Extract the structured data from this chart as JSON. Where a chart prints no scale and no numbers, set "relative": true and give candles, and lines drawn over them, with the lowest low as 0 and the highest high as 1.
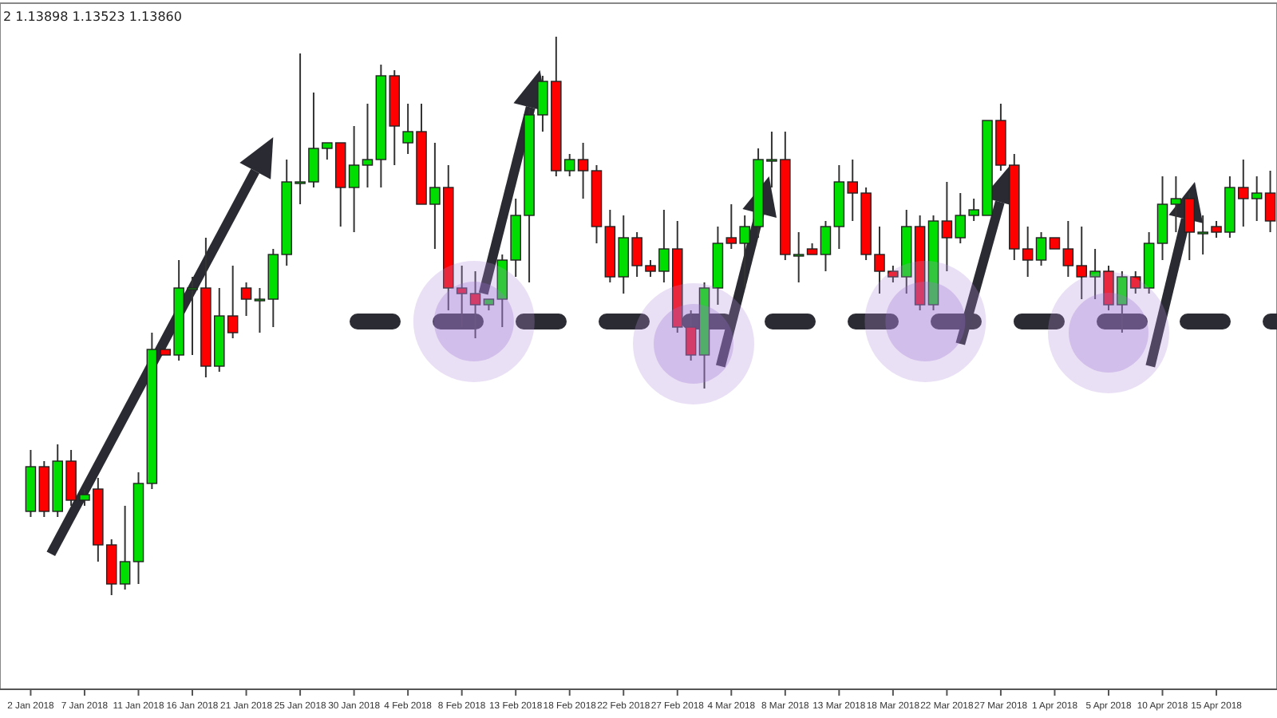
{
  "chart_data": {
    "type": "candlestick",
    "relative": true,
    "annotations": [
      "2 1.13898 1.13523 1.13860"
    ],
    "categories": [
      "2 Jan 2018",
      null,
      null,
      null,
      "7 Jan 2018",
      null,
      null,
      null,
      "11 Jan 2018",
      null,
      null,
      null,
      "16 Jan 2018",
      null,
      null,
      null,
      "21 Jan 2018",
      null,
      null,
      null,
      "25 Jan 2018",
      null,
      null,
      null,
      "30 Jan 2018",
      null,
      null,
      null,
      "4 Feb 2018",
      null,
      null,
      null,
      "8 Feb 2018",
      null,
      null,
      null,
      "13 Feb 2018",
      null,
      null,
      null,
      "18 Feb 2018",
      null,
      null,
      null,
      "22 Feb 2018",
      null,
      null,
      null,
      "27 Feb 2018",
      null,
      null,
      null,
      "4 Mar 2018",
      null,
      null,
      null,
      "8 Mar 2018",
      null,
      null,
      null,
      "13 Mar 2018",
      null,
      null,
      null,
      "18 Mar 2018",
      null,
      null,
      null,
      "22 Mar 2018",
      null,
      null,
      null,
      "27 Mar 2018",
      null,
      null,
      null,
      "1 Apr 2018",
      null,
      null,
      null,
      "5 Apr 2018",
      null,
      null,
      null,
      "10 Apr 2018",
      null,
      null,
      null,
      "15 Apr 2018",
      null,
      null,
      null,
      null
    ],
    "ohlc": [
      [
        0.15,
        0.26,
        0.14,
        0.23
      ],
      [
        0.23,
        0.24,
        0.14,
        0.15
      ],
      [
        0.15,
        0.27,
        0.14,
        0.24
      ],
      [
        0.24,
        0.26,
        0.16,
        0.17
      ],
      [
        0.17,
        0.19,
        0.16,
        0.18
      ],
      [
        0.19,
        0.21,
        0.06,
        0.09
      ],
      [
        0.09,
        0.1,
        0,
        0.02
      ],
      [
        0.02,
        0.16,
        0.01,
        0.06
      ],
      [
        0.06,
        0.22,
        0.02,
        0.2
      ],
      [
        0.2,
        0.47,
        0.19,
        0.44
      ],
      [
        0.44,
        0.44,
        0.43,
        0.43
      ],
      [
        0.43,
        0.6,
        0.42,
        0.55
      ],
      [
        0.55,
        0.57,
        0.43,
        0.55
      ],
      [
        0.55,
        0.64,
        0.39,
        0.41
      ],
      [
        0.41,
        0.55,
        0.4,
        0.5
      ],
      [
        0.5,
        0.59,
        0.46,
        0.47
      ],
      [
        0.55,
        0.56,
        0.5,
        0.53
      ],
      [
        0.53,
        0.55,
        0.47,
        0.53
      ],
      [
        0.53,
        0.62,
        0.48,
        0.61
      ],
      [
        0.61,
        0.78,
        0.59,
        0.74
      ],
      [
        0.74,
        0.97,
        0.7,
        0.74
      ],
      [
        0.74,
        0.9,
        0.73,
        0.8
      ],
      [
        0.8,
        0.81,
        0.78,
        0.81
      ],
      [
        0.81,
        0.81,
        0.66,
        0.73
      ],
      [
        0.73,
        0.84,
        0.65,
        0.77
      ],
      [
        0.77,
        0.88,
        0.73,
        0.78
      ],
      [
        0.78,
        0.95,
        0.73,
        0.93
      ],
      [
        0.93,
        0.94,
        0.77,
        0.84
      ],
      [
        0.81,
        0.88,
        0.79,
        0.83
      ],
      [
        0.83,
        0.88,
        0.7,
        0.7
      ],
      [
        0.7,
        0.81,
        0.62,
        0.73
      ],
      [
        0.73,
        0.77,
        0.51,
        0.55
      ],
      [
        0.55,
        0.59,
        0.48,
        0.54
      ],
      [
        0.54,
        0.58,
        0.46,
        0.52
      ],
      [
        0.52,
        0.53,
        0.51,
        0.53
      ],
      [
        0.53,
        0.61,
        0.48,
        0.6
      ],
      [
        0.6,
        0.71,
        0.57,
        0.68
      ],
      [
        0.68,
        0.87,
        0.56,
        0.86
      ],
      [
        0.86,
        0.93,
        0.83,
        0.92
      ],
      [
        0.92,
        1,
        0.75,
        0.76
      ],
      [
        0.76,
        0.79,
        0.75,
        0.78
      ],
      [
        0.78,
        0.81,
        0.71,
        0.76
      ],
      [
        0.76,
        0.77,
        0.63,
        0.66
      ],
      [
        0.66,
        0.69,
        0.56,
        0.57
      ],
      [
        0.57,
        0.68,
        0.54,
        0.64
      ],
      [
        0.64,
        0.65,
        0.57,
        0.59
      ],
      [
        0.59,
        0.6,
        0.57,
        0.58
      ],
      [
        0.58,
        0.69,
        0.56,
        0.62
      ],
      [
        0.62,
        0.67,
        0.47,
        0.48
      ],
      [
        0.48,
        0.51,
        0.42,
        0.43
      ],
      [
        0.43,
        0.56,
        0.37,
        0.55
      ],
      [
        0.55,
        0.66,
        0.52,
        0.63
      ],
      [
        0.64,
        0.7,
        0.62,
        0.63
      ],
      [
        0.63,
        0.68,
        0.55,
        0.66
      ],
      [
        0.66,
        0.8,
        0.64,
        0.78
      ],
      [
        0.78,
        0.83,
        0.73,
        0.78
      ],
      [
        0.78,
        0.83,
        0.6,
        0.61
      ],
      [
        0.61,
        0.65,
        0.56,
        0.61
      ],
      [
        0.62,
        0.63,
        0.61,
        0.61
      ],
      [
        0.61,
        0.67,
        0.58,
        0.66
      ],
      [
        0.66,
        0.77,
        0.62,
        0.74
      ],
      [
        0.74,
        0.78,
        0.67,
        0.72
      ],
      [
        0.72,
        0.73,
        0.6,
        0.61
      ],
      [
        0.61,
        0.66,
        0.54,
        0.58
      ],
      [
        0.58,
        0.59,
        0.56,
        0.57
      ],
      [
        0.57,
        0.69,
        0.54,
        0.66
      ],
      [
        0.66,
        0.68,
        0.51,
        0.52
      ],
      [
        0.52,
        0.68,
        0.51,
        0.67
      ],
      [
        0.67,
        0.74,
        0.58,
        0.64
      ],
      [
        0.64,
        0.72,
        0.63,
        0.68
      ],
      [
        0.68,
        0.71,
        0.67,
        0.69
      ],
      [
        0.68,
        0.85,
        0.68,
        0.85
      ],
      [
        0.85,
        0.88,
        0.76,
        0.77
      ],
      [
        0.77,
        0.79,
        0.6,
        0.62
      ],
      [
        0.62,
        0.66,
        0.57,
        0.6
      ],
      [
        0.6,
        0.65,
        0.59,
        0.64
      ],
      [
        0.64,
        0.64,
        0.62,
        0.62
      ],
      [
        0.62,
        0.67,
        0.57,
        0.59
      ],
      [
        0.59,
        0.66,
        0.53,
        0.57
      ],
      [
        0.57,
        0.62,
        0.53,
        0.58
      ],
      [
        0.58,
        0.59,
        0.51,
        0.52
      ],
      [
        0.52,
        0.58,
        0.47,
        0.57
      ],
      [
        0.57,
        0.58,
        0.54,
        0.55
      ],
      [
        0.55,
        0.65,
        0.54,
        0.63
      ],
      [
        0.63,
        0.75,
        0.6,
        0.7
      ],
      [
        0.7,
        0.75,
        0.65,
        0.71
      ],
      [
        0.71,
        0.72,
        0.6,
        0.65
      ],
      [
        0.65,
        0.68,
        0.61,
        0.65
      ],
      [
        0.66,
        0.67,
        0.64,
        0.65
      ],
      [
        0.65,
        0.75,
        0.64,
        0.73
      ],
      [
        0.73,
        0.78,
        0.66,
        0.71
      ],
      [
        0.71,
        0.75,
        0.67,
        0.72
      ],
      [
        0.72,
        0.76,
        0.65,
        0.67
      ]
    ],
    "ref_lines": [
      {
        "axis": "y",
        "value": 0.49,
        "line_style": "dashed",
        "color": "#2b2b33"
      }
    ]
  }
}
